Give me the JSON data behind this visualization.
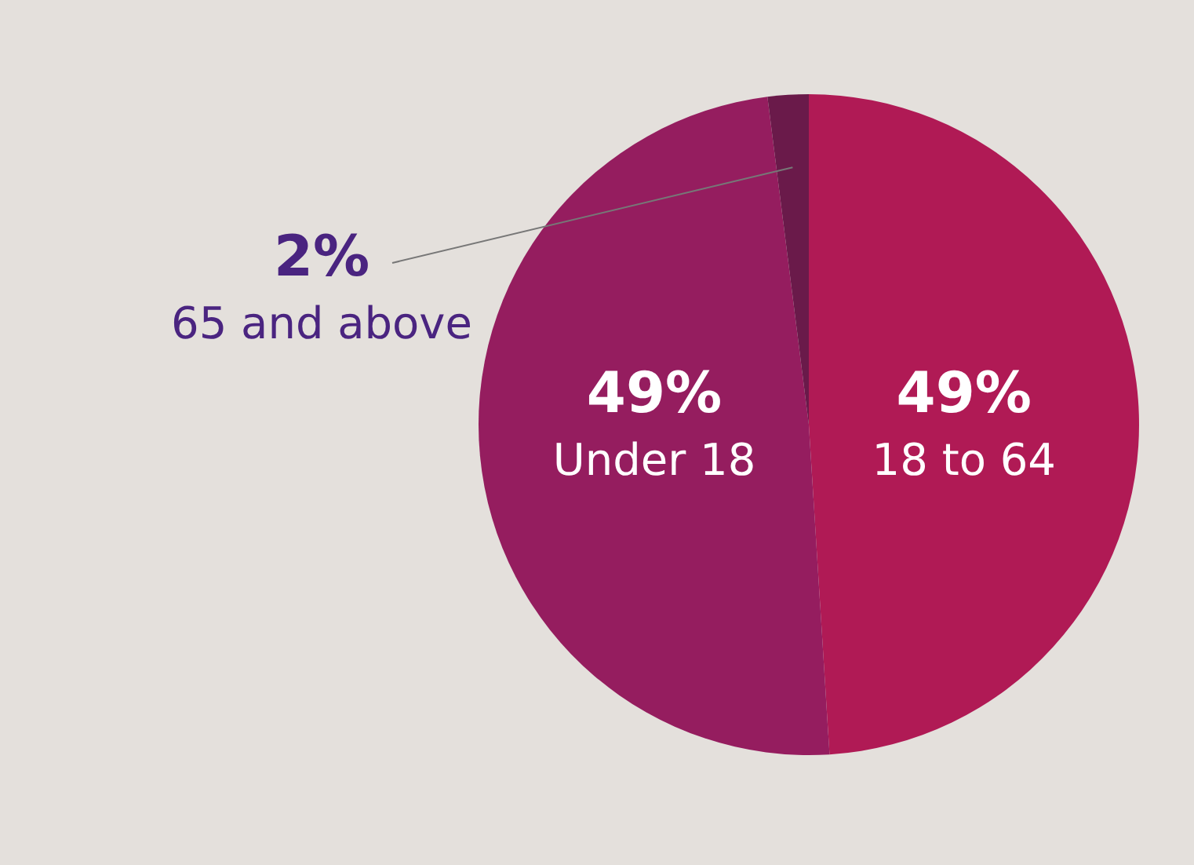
{
  "chart_data": {
    "type": "pie",
    "categories": [
      "18 to 64",
      "Under 18",
      "65 and above"
    ],
    "values": [
      49,
      49,
      2
    ],
    "colors": [
      "#b01a55",
      "#951d5f",
      "#6a1a4a"
    ],
    "value_labels": [
      "49%",
      "49%",
      "2%"
    ],
    "legend": false
  }
}
